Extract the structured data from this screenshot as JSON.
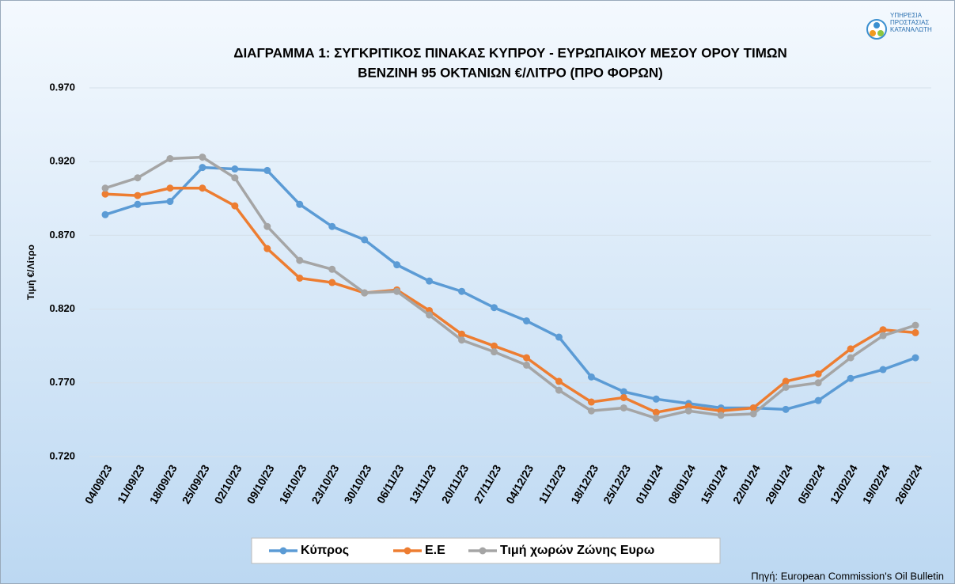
{
  "logo": {
    "lines": [
      "ΥΠΗΡΕΣΙΑ",
      "ΠΡΟΣΤΑΣΙΑΣ",
      "ΚΑΤΑΝΑΛΩΤΗ"
    ]
  },
  "source": "Πηγή: European Commission's Oil Bulletin",
  "chart_data": {
    "type": "line",
    "title": [
      "ΔΙΑΓΡΑΜΜΑ 1: ΣΥΓΚΡΙΤΙΚΟΣ ΠΙΝΑΚΑΣ ΚΥΠΡΟΥ - ΕΥΡΩΠΑΙΚΟΥ ΜΕΣΟΥ ΟΡΟΥ ΤΙΜΩΝ",
      "ΒΕΝΖΙΝΗ 95 ΟΚΤΑΝΙΩΝ €/ΛΙΤΡΟ (ΠΡΟ ΦΟΡΩΝ)"
    ],
    "y_label": "Τιμή €/Λίτρο",
    "categories": [
      "04/09/23",
      "11/09/23",
      "18/09/23",
      "25/09/23",
      "02/10/23",
      "09/10/23",
      "16/10/23",
      "23/10/23",
      "30/10/23",
      "06/11/23",
      "13/11/23",
      "20/11/23",
      "27/11/23",
      "04/12/23",
      "11/12/23",
      "18/12/23",
      "25/12/23",
      "01/01/24",
      "08/01/24",
      "15/01/24",
      "22/01/24",
      "29/01/24",
      "05/02/24",
      "12/02/24",
      "19/02/24",
      "26/02/24"
    ],
    "series": [
      {
        "name": "Κύπρος",
        "color": "#5b9bd5",
        "values": [
          0.884,
          0.891,
          0.893,
          0.916,
          0.915,
          0.914,
          0.891,
          0.876,
          0.867,
          0.85,
          0.839,
          0.832,
          0.821,
          0.812,
          0.801,
          0.774,
          0.764,
          0.759,
          0.756,
          0.753,
          0.753,
          0.752,
          0.758,
          0.773,
          0.779,
          0.787
        ]
      },
      {
        "name": "Ε.Ε",
        "color": "#ed7d31",
        "values": [
          0.898,
          0.897,
          0.902,
          0.902,
          0.89,
          0.861,
          0.841,
          0.838,
          0.831,
          0.833,
          0.819,
          0.803,
          0.795,
          0.787,
          0.771,
          0.757,
          0.76,
          0.75,
          0.754,
          0.751,
          0.753,
          0.771,
          0.776,
          0.793,
          0.806,
          0.804
        ]
      },
      {
        "name": "Τιμή χωρών Ζώνης Ευρω",
        "color": "#a5a5a5",
        "values": [
          0.902,
          0.909,
          0.922,
          0.923,
          0.909,
          0.876,
          0.853,
          0.847,
          0.831,
          0.832,
          0.816,
          0.799,
          0.791,
          0.782,
          0.765,
          0.751,
          0.753,
          0.746,
          0.751,
          0.748,
          0.749,
          0.767,
          0.77,
          0.787,
          0.802,
          0.809
        ]
      }
    ],
    "ylim": [
      0.72,
      0.97
    ],
    "yticks": [
      {
        "value": 0.72,
        "label": "0.720"
      },
      {
        "value": 0.77,
        "label": "0.770"
      },
      {
        "value": 0.82,
        "label": "0.820"
      },
      {
        "value": 0.87,
        "label": "0.870"
      },
      {
        "value": 0.92,
        "label": "0.920"
      },
      {
        "value": 0.97,
        "label": "0.970"
      }
    ],
    "grid": true,
    "legend": "bottom"
  }
}
